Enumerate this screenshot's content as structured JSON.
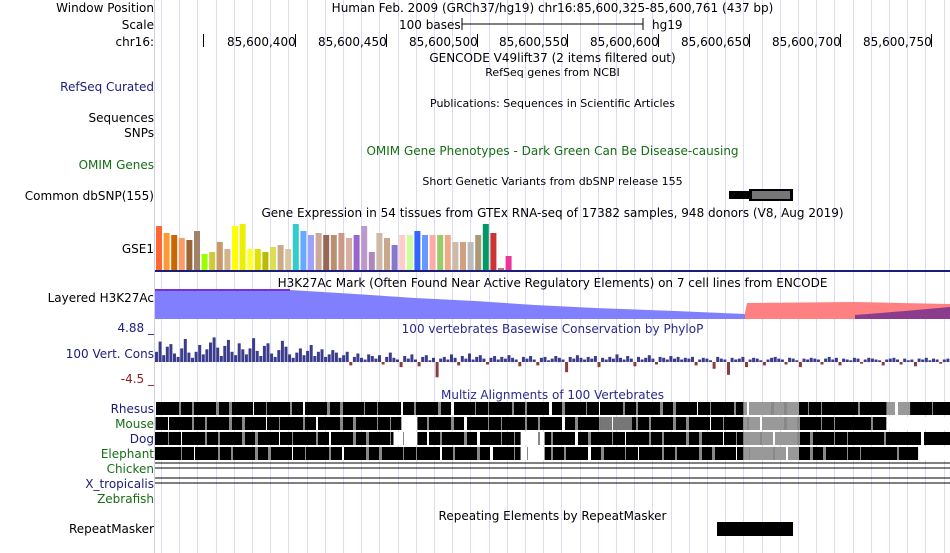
{
  "header": {
    "window_position_label": "Window Position",
    "scale_label": "Scale",
    "chrom_label": "chr16:",
    "assembly_title": "Human Feb. 2009 (GRCh37/hg19)   chr16:85,600,325-85,600,761 (437 bp)",
    "scale_text": "100 bases",
    "scale_db": "hg19",
    "ruler_positions": [
      "85,600,400",
      "85,600,450",
      "85,600,500",
      "85,600,550",
      "85,600,600",
      "85,600,650",
      "85,600,700",
      "85,600,750"
    ]
  },
  "tracks": {
    "gencode_title": "GENCODE V49lift37 (2 items filtered out)",
    "refseq_label": "RefSeq Curated",
    "refseq_title": "RefSeq genes from NCBI",
    "sequences_label": "Sequences",
    "publications_title": "Publications: Sequences in Scientific Articles",
    "snps_label": "SNPs",
    "omim_label": "OMIM Genes",
    "omim_title": "OMIM Gene Phenotypes - Dark Green Can Be Disease-causing",
    "dbsnp_label": "Common dbSNP(155)",
    "dbsnp_title": "Short Genetic Variants from dbSNP release 155",
    "gtex_title": "Gene Expression in 54 tissues from GTEx RNA-seq of 17382 samples, 948 donors (V8, Aug 2019)",
    "gse1_label": "GSE1",
    "h3k27ac_label": "Layered H3K27Ac",
    "h3k27ac_title": "H3K27Ac Mark (Often Found Near Active Regulatory Elements) on 7 cell lines from ENCODE",
    "cons_label": "100 Vert. Cons",
    "cons_max": "4.88 _",
    "cons_min": "-4.5 _",
    "cons_title": "100 vertebrates Basewise Conservation by PhyloP",
    "multiz_title": "Multiz Alignments of 100 Vertebrates",
    "species": [
      "Rhesus",
      "Mouse",
      "Dog",
      "Elephant",
      "Chicken",
      "X_tropicalis",
      "Zebrafish"
    ],
    "repeatmasker_label": "RepeatMasker",
    "repeatmasker_title": "Repeating Elements by RepeatMasker"
  },
  "colors": {
    "label_blue": "#1c1c7a",
    "label_green": "#146e14",
    "h3k27ac_blue": "#8080ff",
    "h3k27ac_red": "#ff8080",
    "cons_pos": "#3c3c8c",
    "cons_neg": "#8c3c3c"
  },
  "gtex_bar_colors": [
    "#ff6633",
    "#ff9933",
    "#cc6600",
    "#ff9966",
    "#996633",
    "#a0826d",
    "#99ff00",
    "#cccc33",
    "#cc9966",
    "#d2b48c",
    "#ffff00",
    "#eeee00",
    "#ffff33",
    "#e0e000",
    "#bbbb00",
    "#dddd55",
    "#ccaa88",
    "#d9c5a0",
    "#33cccc",
    "#66aaff",
    "#a0a0ff",
    "#ccaa99",
    "#996655",
    "#b89070",
    "#cc9988",
    "#d8b0a0",
    "#9966cc",
    "#bb99cc",
    "#aa88bb",
    "#d0b8a8",
    "#c8a888",
    "#8877cc",
    "#ffcccc",
    "#ccff99",
    "#3366ff",
    "#6699ff",
    "#ffaaaa",
    "#99cc66",
    "#eeaa88",
    "#ccbbaa",
    "#d0a080",
    "#bbbbbb",
    "#aa9977",
    "#009966",
    "#cc3333",
    "#bb7777",
    "#ee3399"
  ],
  "gtex_values": [
    0.95,
    0.8,
    0.75,
    0.7,
    0.65,
    0.85,
    0.35,
    0.4,
    0.6,
    0.45,
    0.95,
    1.0,
    0.45,
    0.45,
    0.4,
    0.5,
    0.55,
    0.45,
    1.0,
    0.85,
    0.75,
    0.8,
    0.75,
    0.75,
    0.8,
    0.7,
    0.75,
    0.95,
    0.4,
    0.8,
    0.7,
    0.55,
    0.75,
    0.75,
    0.85,
    0.75,
    0.75,
    0.75,
    0.75,
    0.6,
    0.6,
    0.6,
    0.75,
    1.0,
    0.8,
    0.05,
    0.3
  ],
  "conservation_values": [
    1.2,
    2.4,
    0.8,
    1.8,
    2.1,
    1.0,
    0.6,
    1.6,
    2.7,
    1.1,
    0.5,
    1.2,
    2.0,
    0.9,
    1.5,
    2.3,
    2.9,
    1.7,
    0.7,
    1.9,
    2.6,
    1.2,
    0.8,
    2.2,
    1.5,
    0.9,
    1.6,
    2.8,
    1.3,
    0.7,
    1.9,
    2.2,
    1.0,
    0.6,
    1.4,
    2.5,
    1.8,
    0.9,
    0.5,
    1.1,
    1.6,
    0.8,
    1.3,
    2.0,
    0.7,
    1.2,
    1.5,
    0.6,
    0.9,
    1.4,
    1.1,
    0.5,
    0.8,
    1.2,
    -0.4,
    0.6,
    1.0,
    0.5,
    0.3,
    0.9,
    0.7,
    0.4,
    0.8,
    -0.3,
    0.6,
    1.1,
    0.5,
    0.3,
    -0.6,
    0.7,
    0.4,
    0.9,
    0.3,
    -0.5,
    0.6,
    0.8,
    0.2,
    0.5,
    -1.8,
    0.4,
    0.6,
    0.3,
    0.9,
    0.5,
    -0.4,
    0.7,
    0.4,
    1.0,
    0.3,
    0.6,
    0.8,
    0.4,
    -0.3,
    0.5,
    0.7,
    0.3,
    0.6,
    0.4,
    0.8,
    0.5,
    0.3,
    -0.5,
    0.6,
    0.4,
    0.7,
    0.3,
    -0.4,
    0.5,
    0.6,
    0.2,
    0.4,
    0.7,
    0.5,
    0.3,
    -1.2,
    0.6,
    0.4,
    0.8,
    0.5,
    0.3,
    0.6,
    0.4,
    0.7,
    -0.6,
    0.5,
    0.3,
    0.6,
    0.4,
    0.9,
    0.5,
    0.3,
    0.7,
    0.4,
    -0.5,
    0.6,
    0.3,
    0.5,
    0.8,
    0.4,
    -0.3,
    0.6,
    0.5,
    0.3,
    0.7,
    0.4,
    0.6,
    0.3,
    0.5,
    0.4,
    0.6,
    -0.4,
    0.3,
    0.5,
    0.4,
    0.2,
    -0.8,
    0.6,
    0.4,
    0.3,
    -1.5,
    0.5,
    0.3,
    0.4,
    0.6,
    -0.6,
    0.3,
    0.5,
    0.4,
    0.2,
    -0.4,
    0.3,
    0.5,
    0.6,
    0.4,
    0.3,
    -0.3,
    0.5,
    0.4,
    0.2,
    -0.6,
    0.4,
    0.3,
    0.5,
    0.4,
    0.3,
    -0.3,
    0.4,
    0.6,
    0.3,
    0.5,
    -0.4,
    0.4,
    0.3,
    0.2,
    0.5,
    0.4,
    -0.2,
    0.3,
    0.5,
    0.4,
    0.3,
    0.2,
    -0.4,
    0.3,
    0.4,
    0.5,
    0.3,
    -0.3,
    0.4,
    0.2,
    0.3,
    -0.5,
    0.4,
    0.3,
    0.5,
    0.2,
    0.4,
    0.3,
    -0.2,
    0.3,
    0.4
  ],
  "multiz_species_patterns": {
    "Rhesus": [
      [
        0,
        1,
        "#000"
      ],
      [
        1,
        0.74,
        "#000"
      ],
      [
        0.74,
        0.81,
        "#999"
      ],
      [
        0.81,
        0.92,
        "#000"
      ],
      [
        0.92,
        0.95,
        "#999"
      ],
      [
        0.95,
        1,
        "#000"
      ]
    ],
    "Mouse": [
      [
        0,
        0.31,
        "#000"
      ],
      [
        0.31,
        0.33,
        "#fff"
      ],
      [
        0.33,
        0.56,
        "#000"
      ],
      [
        0.56,
        0.6,
        "#777"
      ],
      [
        0.6,
        0.74,
        "#000"
      ],
      [
        0.74,
        0.81,
        "#999"
      ],
      [
        0.81,
        0.92,
        "#000"
      ],
      [
        0.92,
        1,
        "#fff"
      ]
    ],
    "Dog": [
      [
        0,
        0.3,
        "#000"
      ],
      [
        0.3,
        0.33,
        "#fff"
      ],
      [
        0.33,
        0.46,
        "#000"
      ],
      [
        0.46,
        0.49,
        "#fff"
      ],
      [
        0.49,
        0.74,
        "#000"
      ],
      [
        0.74,
        0.81,
        "#999"
      ],
      [
        0.81,
        1,
        "#000"
      ]
    ],
    "Elephant": [
      [
        0,
        0.46,
        "#000"
      ],
      [
        0.46,
        0.49,
        "#fff"
      ],
      [
        0.49,
        0.74,
        "#000"
      ],
      [
        0.74,
        0.81,
        "#999"
      ],
      [
        0.81,
        0.96,
        "#000"
      ],
      [
        0.96,
        1,
        "#fff"
      ]
    ]
  }
}
